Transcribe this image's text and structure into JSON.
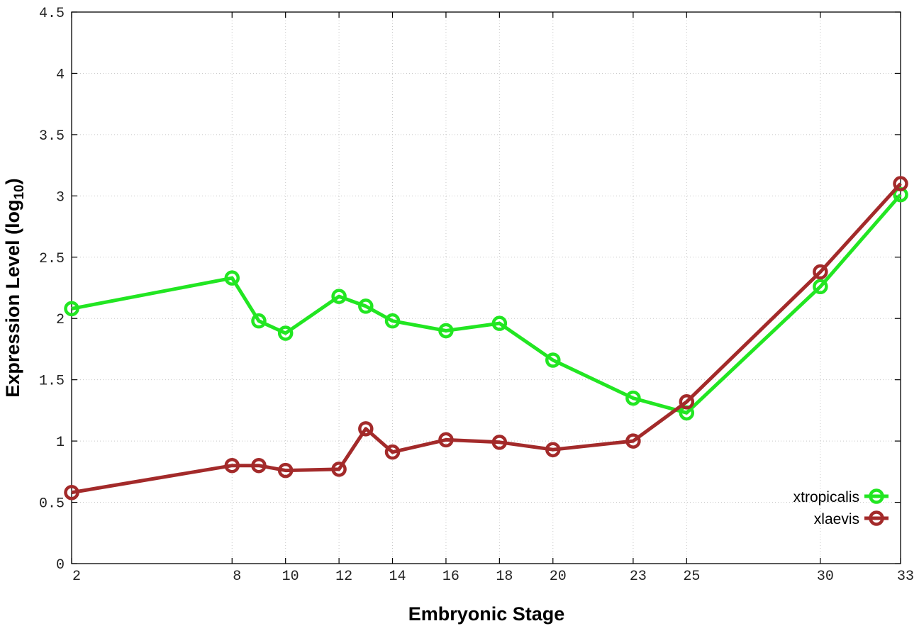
{
  "chart_data": {
    "type": "line",
    "title": "",
    "xlabel": "Embryonic Stage",
    "ylabel_prefix": "Expression Level (log",
    "ylabel_sub": "10",
    "ylabel_suffix": ")",
    "x": [
      2,
      8,
      9,
      10,
      12,
      13,
      14,
      16,
      18,
      20,
      23,
      25,
      30,
      33
    ],
    "x_ticks": [
      2,
      8,
      10,
      12,
      14,
      16,
      18,
      20,
      23,
      25,
      30,
      33
    ],
    "x_tick_labels": [
      "2",
      "8",
      "10",
      "12",
      "14",
      "16",
      "18",
      "20",
      "23",
      "25",
      "30",
      "33"
    ],
    "y_ticks": [
      0,
      0.5,
      1,
      1.5,
      2,
      2.5,
      3,
      3.5,
      4,
      4.5
    ],
    "y_tick_labels": [
      "0",
      "0.5",
      "1",
      "1.5",
      "2",
      "2.5",
      "3",
      "3.5",
      "4",
      "4.5"
    ],
    "xlim": [
      2,
      33
    ],
    "ylim": [
      0,
      4.5
    ],
    "grid": true,
    "legend_position": "bottom-right",
    "series": [
      {
        "name": "xtropicalis",
        "color": "#22e622",
        "marker": "open-circle",
        "x": [
          2,
          8,
          9,
          10,
          12,
          13,
          14,
          16,
          18,
          20,
          23,
          25,
          30,
          33
        ],
        "values": [
          2.08,
          2.33,
          1.98,
          1.88,
          2.18,
          2.1,
          1.98,
          1.9,
          1.96,
          1.66,
          1.35,
          1.23,
          2.26,
          3.01
        ]
      },
      {
        "name": "xlaevis",
        "color": "#a32a2a",
        "marker": "open-circle",
        "x": [
          2,
          8,
          9,
          10,
          12,
          13,
          14,
          16,
          18,
          20,
          23,
          25,
          30,
          33
        ],
        "values": [
          0.58,
          0.8,
          0.8,
          0.76,
          0.77,
          1.1,
          0.91,
          1.01,
          0.99,
          0.93,
          1.0,
          1.32,
          2.38,
          3.1
        ]
      }
    ]
  }
}
